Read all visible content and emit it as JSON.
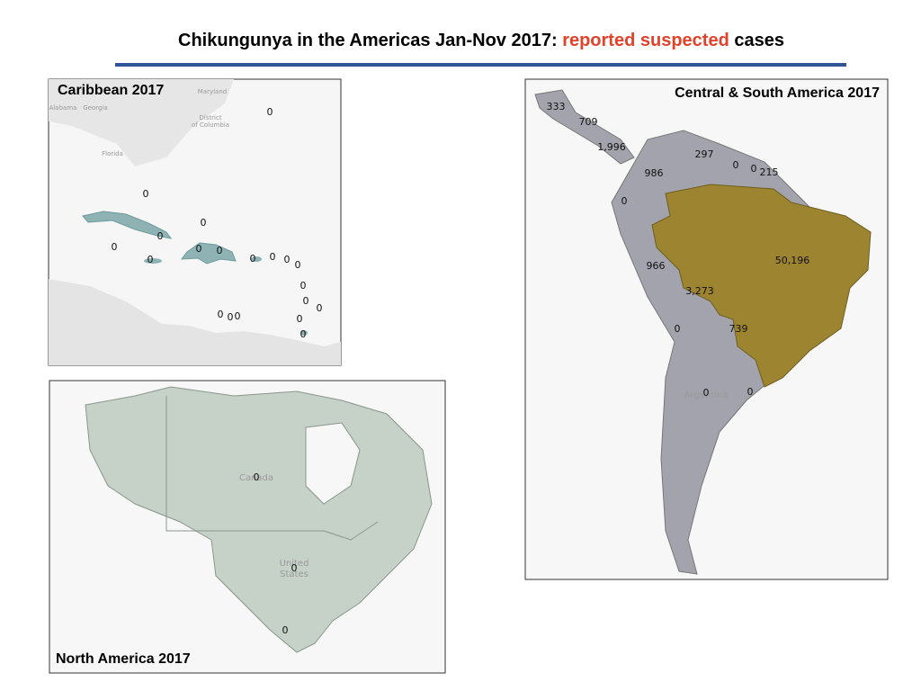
{
  "title": {
    "lead": "Chikungunya in the Americas Jan-Nov 2017:",
    "highlight": "reported suspected",
    "tail": "cases"
  },
  "panels": {
    "caribbean": {
      "title": "Caribbean 2017",
      "labels": [
        "0",
        "0",
        "0",
        "0",
        "0",
        "0",
        "0",
        "0",
        "0",
        "0",
        "0",
        "0",
        "0",
        "0",
        "0",
        "0",
        "0",
        "0",
        "0",
        "0"
      ],
      "base_labels": [
        "Maryland",
        "Georgia",
        "Alabama",
        "District",
        "of Columbia",
        "Florida"
      ]
    },
    "central_south_america": {
      "title": "Central & South America  2017",
      "labels": [
        "333",
        "709",
        "1,996",
        "297",
        "0",
        "0",
        "215",
        "986",
        "0",
        "50,196",
        "966",
        "3,273",
        "0",
        "739",
        "0",
        "0"
      ],
      "base_labels": [
        "Argentina"
      ]
    },
    "north_america": {
      "title": "North America 2017",
      "labels": [
        "0",
        "0",
        "0"
      ],
      "base_labels": [
        "Canada",
        "United",
        "States"
      ]
    }
  }
}
